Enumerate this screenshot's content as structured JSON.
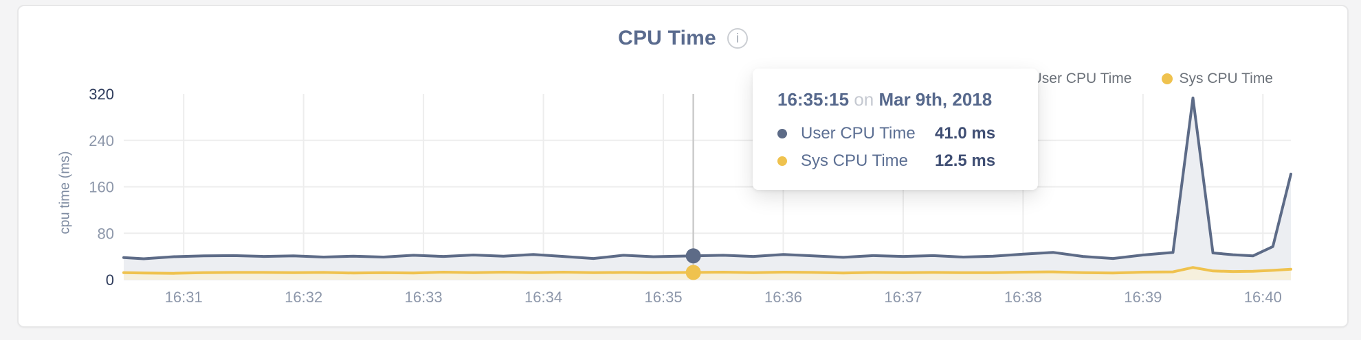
{
  "header": {
    "title": "CPU Time",
    "info_icon": "i"
  },
  "legend": {
    "items": [
      {
        "label": "User CPU Time",
        "color": "#5d6b87"
      },
      {
        "label": "Sys CPU Time",
        "color": "#efc24e"
      }
    ]
  },
  "tooltip": {
    "time": "16:35:15",
    "connector": "on",
    "date": "Mar 9th, 2018",
    "rows": [
      {
        "label": "User CPU Time",
        "value": "41.0 ms",
        "color": "#5d6b87"
      },
      {
        "label": "Sys CPU Time",
        "value": "12.5 ms",
        "color": "#efc24e"
      }
    ]
  },
  "chart_data": {
    "type": "area",
    "title": "CPU Time",
    "xlabel": "",
    "ylabel": "cpu time (ms)",
    "ylim": [
      0,
      320
    ],
    "yticks": [
      320,
      240,
      160,
      80,
      0
    ],
    "xticks": [
      "16:31",
      "16:32",
      "16:33",
      "16:34",
      "16:35",
      "16:36",
      "16:37",
      "16:38",
      "16:39",
      "16:40"
    ],
    "grid": true,
    "legend_position": "top-right",
    "hover": {
      "time": "16:35:15",
      "date": "Mar 9th, 2018",
      "user_ms": 41.0,
      "sys_ms": 12.5
    },
    "x_times": [
      "16:30:30",
      "16:30:40",
      "16:30:55",
      "16:31:10",
      "16:31:25",
      "16:31:40",
      "16:31:55",
      "16:32:10",
      "16:32:25",
      "16:32:40",
      "16:32:55",
      "16:33:10",
      "16:33:25",
      "16:33:40",
      "16:33:55",
      "16:34:10",
      "16:34:25",
      "16:34:40",
      "16:34:55",
      "16:35:15",
      "16:35:30",
      "16:35:45",
      "16:36:00",
      "16:36:15",
      "16:36:30",
      "16:36:45",
      "16:37:00",
      "16:37:15",
      "16:37:30",
      "16:37:45",
      "16:38:00",
      "16:38:15",
      "16:38:30",
      "16:38:45",
      "16:39:00",
      "16:39:15",
      "16:39:25",
      "16:39:35",
      "16:39:45",
      "16:39:55",
      "16:40:05",
      "16:40:14"
    ],
    "series": [
      {
        "name": "User CPU Time",
        "color": "#5d6b87",
        "fill": "#eceef2",
        "values": [
          38,
          36,
          39.5,
          41,
          41.5,
          40,
          41,
          39,
          40.5,
          39,
          42,
          40,
          42.5,
          40.5,
          43.5,
          40,
          36.5,
          42,
          39.5,
          41,
          42,
          40,
          43.5,
          41,
          38.5,
          41.5,
          40,
          41.5,
          39,
          40.5,
          44,
          47,
          40,
          36.5,
          42.5,
          47,
          313,
          46,
          43,
          41,
          57,
          182
        ]
      },
      {
        "name": "Sys CPU Time",
        "color": "#efc24e",
        "fill": "#f6f0dd",
        "values": [
          12,
          11.5,
          11,
          12,
          12.5,
          12.5,
          12,
          12.5,
          11.5,
          12,
          11.5,
          13,
          12,
          13,
          12,
          13,
          12,
          12.5,
          12,
          12.5,
          13,
          12,
          13,
          12.5,
          11.5,
          12.5,
          12,
          12.5,
          12,
          12,
          13,
          13.5,
          12,
          11.5,
          13,
          13.5,
          21,
          15,
          14,
          14.5,
          16,
          18
        ]
      }
    ],
    "axis_colors": {
      "strong": "#2f3c5c",
      "muted": "#8d97aa",
      "grid": "#ededed",
      "crosshair": "#cbcbcb"
    }
  }
}
